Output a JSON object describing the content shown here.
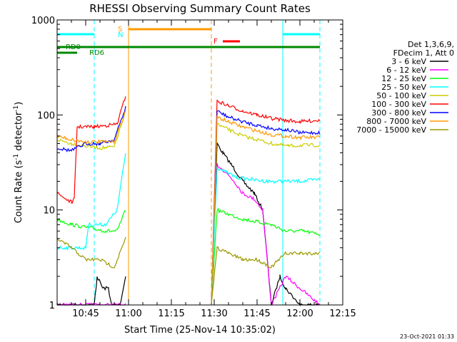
{
  "chart_data": {
    "type": "line",
    "title": "RHESSI Observing Summary Count Rates",
    "xlabel": "Start Time (25-Nov-14 10:35:02)",
    "ylabel_prefix": "Count Rate (s",
    "ylabel_sup1": "-1",
    "ylabel_mid": " detector",
    "ylabel_sup2": "-1",
    "ylabel_suffix": ")",
    "yscale": "log",
    "ylim": [
      1,
      1000
    ],
    "xlim_min": [
      35,
      135
    ],
    "xticks": [
      {
        "t": 45,
        "label": "10:45"
      },
      {
        "t": 60,
        "label": "11:00"
      },
      {
        "t": 75,
        "label": "11:15"
      },
      {
        "t": 90,
        "label": "11:30"
      },
      {
        "t": 105,
        "label": "11:45"
      },
      {
        "t": 120,
        "label": "12:00"
      },
      {
        "t": 135,
        "label": "12:15"
      }
    ],
    "yticks": [
      {
        "v": 1,
        "label": "1"
      },
      {
        "v": 10,
        "label": "10"
      },
      {
        "v": 100,
        "label": "100"
      },
      {
        "v": 1000,
        "label": "1000"
      }
    ],
    "legend_header": [
      "Det 1,3,6,9,",
      "FDecim 1, Att 0"
    ],
    "series": [
      {
        "name": "3 - 6 keV",
        "color": "#000000",
        "pre": [
          [
            35,
            1
          ],
          [
            48,
            1
          ],
          [
            49,
            2
          ],
          [
            51,
            1.5
          ],
          [
            53,
            1.5
          ],
          [
            54,
            1
          ],
          [
            57,
            1
          ],
          [
            59,
            2
          ]
        ],
        "post": [
          [
            89,
            1
          ],
          [
            91,
            50
          ],
          [
            93,
            40
          ],
          [
            96,
            30
          ],
          [
            100,
            20
          ],
          [
            104,
            15
          ],
          [
            107,
            10
          ],
          [
            110,
            1
          ],
          [
            113,
            2
          ],
          [
            115,
            1.5
          ],
          [
            120,
            1
          ],
          [
            127,
            1
          ]
        ]
      },
      {
        "name": "6 - 12 keV",
        "color": "#ff00ff",
        "pre": [
          [
            35,
            1
          ],
          [
            59,
            1
          ]
        ],
        "post": [
          [
            89,
            1
          ],
          [
            91,
            30
          ],
          [
            94,
            25
          ],
          [
            97,
            20
          ],
          [
            100,
            15
          ],
          [
            104,
            13
          ],
          [
            107,
            10
          ],
          [
            110,
            1
          ],
          [
            115,
            2
          ],
          [
            120,
            1.5
          ],
          [
            127,
            1
          ]
        ]
      },
      {
        "name": "12 - 25 keV",
        "color": "#00ff00",
        "pre": [
          [
            35,
            8
          ],
          [
            40,
            7
          ],
          [
            46,
            6.5
          ],
          [
            52,
            6
          ],
          [
            56,
            6
          ],
          [
            59,
            10
          ]
        ],
        "post": [
          [
            89,
            1
          ],
          [
            91,
            10
          ],
          [
            95,
            9
          ],
          [
            100,
            8
          ],
          [
            105,
            7.5
          ],
          [
            110,
            7
          ],
          [
            115,
            6
          ],
          [
            121,
            6
          ],
          [
            127,
            5.5
          ]
        ]
      },
      {
        "name": "25 - 50 keV",
        "color": "#00ffff",
        "pre": [
          [
            35,
            4
          ],
          [
            45,
            4
          ],
          [
            46,
            7
          ],
          [
            52,
            7
          ],
          [
            56,
            10
          ],
          [
            59,
            40
          ]
        ],
        "post": [
          [
            89,
            1
          ],
          [
            91,
            28
          ],
          [
            94,
            25
          ],
          [
            98,
            22
          ],
          [
            103,
            21
          ],
          [
            108,
            20
          ],
          [
            114,
            20
          ],
          [
            120,
            20
          ],
          [
            127,
            21
          ]
        ]
      },
      {
        "name": "50 - 100 keV",
        "color": "#cccc00",
        "pre": [
          [
            35,
            55
          ],
          [
            40,
            50
          ],
          [
            45,
            47
          ],
          [
            50,
            45
          ],
          [
            55,
            46
          ],
          [
            59,
            110
          ]
        ],
        "post": [
          [
            89,
            1
          ],
          [
            91,
            80
          ],
          [
            95,
            70
          ],
          [
            100,
            60
          ],
          [
            105,
            55
          ],
          [
            110,
            50
          ],
          [
            116,
            47
          ],
          [
            121,
            48
          ],
          [
            127,
            48
          ]
        ]
      },
      {
        "name": "100 - 300 keV",
        "color": "#ff0000",
        "pre": [
          [
            35,
            15
          ],
          [
            40,
            12
          ],
          [
            41,
            13
          ],
          [
            42,
            75
          ],
          [
            48,
            75
          ],
          [
            53,
            78
          ],
          [
            56,
            80
          ],
          [
            59,
            160
          ]
        ],
        "post": [
          [
            89,
            1
          ],
          [
            91,
            140
          ],
          [
            95,
            125
          ],
          [
            100,
            110
          ],
          [
            105,
            100
          ],
          [
            110,
            92
          ],
          [
            115,
            88
          ],
          [
            120,
            85
          ],
          [
            127,
            88
          ]
        ]
      },
      {
        "name": "300 - 800 keV",
        "color": "#0000ff",
        "pre": [
          [
            35,
            45
          ],
          [
            40,
            42
          ],
          [
            45,
            50
          ],
          [
            50,
            50
          ],
          [
            55,
            55
          ],
          [
            59,
            120
          ]
        ],
        "post": [
          [
            89,
            1
          ],
          [
            91,
            110
          ],
          [
            95,
            95
          ],
          [
            100,
            85
          ],
          [
            105,
            78
          ],
          [
            110,
            72
          ],
          [
            115,
            70
          ],
          [
            120,
            65
          ],
          [
            127,
            65
          ]
        ]
      },
      {
        "name": "800 - 7000 keV",
        "color": "#ff9900",
        "pre": [
          [
            35,
            60
          ],
          [
            40,
            55
          ],
          [
            45,
            52
          ],
          [
            50,
            52
          ],
          [
            55,
            52
          ],
          [
            59,
            110
          ]
        ],
        "post": [
          [
            89,
            1
          ],
          [
            91,
            95
          ],
          [
            95,
            85
          ],
          [
            100,
            75
          ],
          [
            105,
            68
          ],
          [
            110,
            62
          ],
          [
            115,
            60
          ],
          [
            120,
            58
          ],
          [
            127,
            58
          ]
        ]
      },
      {
        "name": "7000 - 15000 keV",
        "color": "#999900",
        "pre": [
          [
            35,
            5
          ],
          [
            40,
            4
          ],
          [
            45,
            3
          ],
          [
            50,
            3
          ],
          [
            55,
            2.5
          ],
          [
            59,
            5
          ]
        ],
        "post": [
          [
            89,
            1
          ],
          [
            91,
            4
          ],
          [
            95,
            3.5
          ],
          [
            100,
            3
          ],
          [
            105,
            3
          ],
          [
            110,
            2.5
          ],
          [
            115,
            3.5
          ],
          [
            120,
            3.5
          ],
          [
            127,
            3.5
          ]
        ]
      }
    ],
    "annotations": {
      "saa_label": "S",
      "night_label": "N",
      "flare_label": "F",
      "rd0_label": "RD0",
      "rd6_label": "RD6",
      "saa_t": [
        60,
        89
      ],
      "saa_color": "#ff9900",
      "flare_t": [
        93,
        99
      ],
      "flare_color": "#ff0000",
      "night_segments": [
        [
          35,
          48
        ],
        [
          114,
          127
        ]
      ],
      "night_color": "#00ffff",
      "rd0_t": [
        35,
        127
      ],
      "rd6_t": [
        35,
        42
      ],
      "rd_color": "#008800",
      "vlines": [
        {
          "t": 35,
          "color": "#00ffff",
          "style": "solid"
        },
        {
          "t": 48,
          "color": "#00ffff",
          "style": "dash"
        },
        {
          "t": 60,
          "color": "#ff9900",
          "style": "solid"
        },
        {
          "t": 89,
          "color": "#ff9900",
          "style": "dash"
        },
        {
          "t": 114,
          "color": "#00ffff",
          "style": "solid"
        },
        {
          "t": 127,
          "color": "#00ffff",
          "style": "dash"
        }
      ]
    },
    "footer_date": "23-Oct-2021 01:33"
  }
}
